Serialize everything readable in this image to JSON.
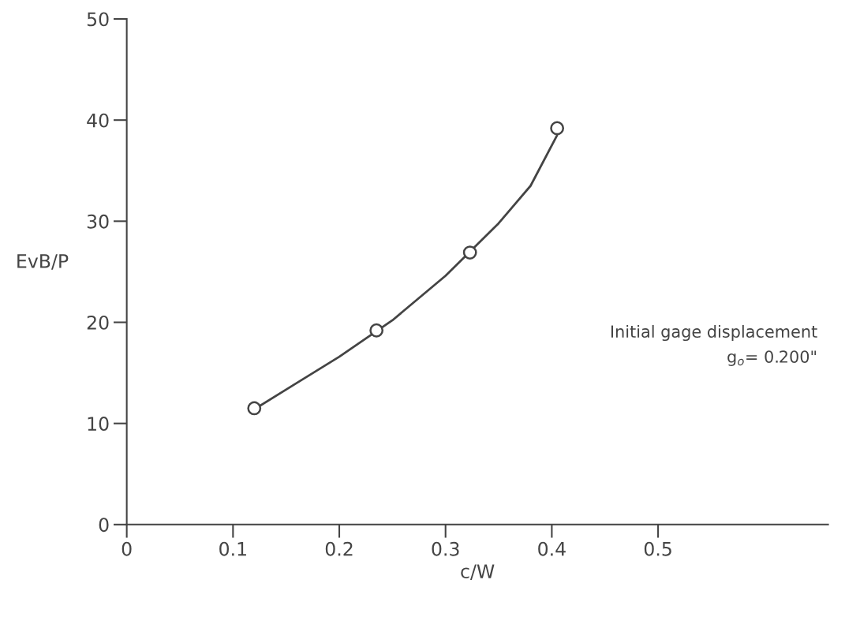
{
  "chart_data": {
    "type": "scatter",
    "xlabel": "c/W",
    "ylabel": "EvB/P",
    "xlim": [
      0,
      0.66
    ],
    "xticks": [
      0,
      0.1,
      0.2,
      0.3,
      0.4,
      0.5
    ],
    "ylim": [
      0,
      50
    ],
    "yticks": [
      0,
      10,
      20,
      30,
      40,
      50
    ],
    "grid": false,
    "legend": false,
    "series": [
      {
        "marker": "circle",
        "color": "#444444",
        "x": [
          0.12,
          0.235,
          0.323,
          0.405
        ],
        "values": [
          11.5,
          19.2,
          26.9,
          39.2
        ]
      },
      {
        "type": "line",
        "marker": "none",
        "color": "#444444",
        "line_style": "solid",
        "x": [
          0.12,
          0.16,
          0.2,
          0.25,
          0.3,
          0.35,
          0.38,
          0.405
        ],
        "values": [
          11.4,
          14,
          16.6,
          20.2,
          24.6,
          29.8,
          33.5,
          38.5
        ]
      }
    ],
    "annotations": [
      "Initial gage displacement",
      "g$_{o}$= 0.200\""
    ]
  }
}
